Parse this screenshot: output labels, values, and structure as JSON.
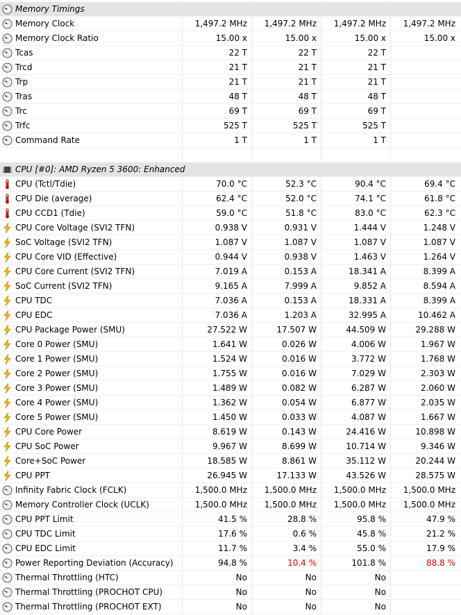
{
  "sections": [
    {
      "title": "Memory Timings",
      "rows": [
        {
          "label": "Memory Clock",
          "values": [
            "1,497.2 MHz",
            "1,497.2 MHz",
            "1,497.2 MHz",
            "1,497.2 MHz"
          ]
        },
        {
          "label": "Memory Clock Ratio",
          "values": [
            "15.00 x",
            "15.00 x",
            "15.00 x",
            "15.00 x"
          ]
        },
        {
          "label": "Tcas",
          "values": [
            "22 T",
            "22 T",
            "22 T",
            null
          ]
        },
        {
          "label": "Trcd",
          "values": [
            "21 T",
            "21 T",
            "21 T",
            null
          ]
        },
        {
          "label": "Trp",
          "values": [
            "21 T",
            "21 T",
            "21 T",
            null
          ]
        },
        {
          "label": "Tras",
          "values": [
            "48 T",
            "48 T",
            "48 T",
            null
          ]
        },
        {
          "label": "Trc",
          "values": [
            "69 T",
            "69 T",
            "69 T",
            null
          ]
        },
        {
          "label": "Trfc",
          "values": [
            "525 T",
            "525 T",
            "525 T",
            null
          ]
        },
        {
          "label": "Command Rate",
          "values": [
            "1 T",
            "1 T",
            "1 T",
            null
          ]
        }
      ]
    },
    {
      "title": "CPU [#0]: AMD Ryzen 5 3600: Enhanced",
      "rows": [
        {
          "label": "CPU (Tctl/Tdie)",
          "values": [
            "70.0 °C",
            "52.3 °C",
            "90.4 °C",
            "69.4 °C"
          ]
        },
        {
          "label": "CPU Die (average)",
          "values": [
            "62.4 °C",
            "52.0 °C",
            "74.1 °C",
            "61.8 °C"
          ]
        },
        {
          "label": "CPU CCD1 (Tdie)",
          "values": [
            "59.0 °C",
            "51.8 °C",
            "83.0 °C",
            "62.3 °C"
          ]
        },
        {
          "label": "CPU Core Voltage (SVI2 TFN)",
          "values": [
            "0.938 V",
            "0.931 V",
            "1.444 V",
            "1.248 V"
          ]
        },
        {
          "label": "SoC Voltage (SVI2 TFN)",
          "values": [
            "1.087 V",
            "1.087 V",
            "1.087 V",
            "1.087 V"
          ]
        },
        {
          "label": "CPU Core VID (Effective)",
          "values": [
            "0.944 V",
            "0.938 V",
            "1.463 V",
            "1.264 V"
          ]
        },
        {
          "label": "CPU Core Current (SVI2 TFN)",
          "values": [
            "7.019 A",
            "0.153 A",
            "18.341 A",
            "8.399 A"
          ]
        },
        {
          "label": "SoC Current (SVI2 TFN)",
          "values": [
            "9.165 A",
            "7.999 A",
            "9.852 A",
            "8.594 A"
          ]
        },
        {
          "label": "CPU TDC",
          "values": [
            "7.036 A",
            "0.153 A",
            "18.331 A",
            "8.399 A"
          ]
        },
        {
          "label": "CPU EDC",
          "values": [
            "7.036 A",
            "1.203 A",
            "32.995 A",
            "10.462 A"
          ]
        },
        {
          "label": "CPU Package Power (SMU)",
          "values": [
            "27.522 W",
            "17.507 W",
            "44.509 W",
            "29.288 W"
          ]
        },
        {
          "label": "Core 0 Power (SMU)",
          "values": [
            "1.641 W",
            "0.026 W",
            "4.006 W",
            "1.967 W"
          ]
        },
        {
          "label": "Core 1 Power (SMU)",
          "values": [
            "1.524 W",
            "0.016 W",
            "3.772 W",
            "1.768 W"
          ]
        },
        {
          "label": "Core 2 Power (SMU)",
          "values": [
            "1.755 W",
            "0.016 W",
            "7.029 W",
            "2.303 W"
          ]
        },
        {
          "label": "Core 3 Power (SMU)",
          "values": [
            "1.489 W",
            "0.082 W",
            "6.287 W",
            "2.060 W"
          ]
        },
        {
          "label": "Core 4 Power (SMU)",
          "values": [
            "1.362 W",
            "0.054 W",
            "6.877 W",
            "2.035 W"
          ]
        },
        {
          "label": "Core 5 Power (SMU)",
          "values": [
            "1.450 W",
            "0.033 W",
            "4.087 W",
            "1.667 W"
          ]
        },
        {
          "label": "CPU Core Power",
          "values": [
            "8.619 W",
            "0.143 W",
            "24.416 W",
            "10.898 W"
          ]
        },
        {
          "label": "CPU SoC Power",
          "values": [
            "9.967 W",
            "8.699 W",
            "10.714 W",
            "9.346 W"
          ]
        },
        {
          "label": "Core+SoC Power",
          "values": [
            "18.585 W",
            "8.861 W",
            "35.112 W",
            "20.244 W"
          ]
        },
        {
          "label": "CPU PPT",
          "values": [
            "26.945 W",
            "17.133 W",
            "43.526 W",
            "28.575 W"
          ]
        },
        {
          "label": "Infinity Fabric Clock (FCLK)",
          "values": [
            "1,500.0 MHz",
            "1,500.0 MHz",
            "1,500.0 MHz",
            "1,500.0 MHz"
          ]
        },
        {
          "label": "Memory Controller Clock (UCLK)",
          "values": [
            "1,500.0 MHz",
            "1,500.0 MHz",
            "1,500.0 MHz",
            "1,500.0 MHz"
          ]
        },
        {
          "label": "CPU PPT Limit",
          "values": [
            "41.5 %",
            "28.8 %",
            "95.8 %",
            "47.9 %"
          ]
        },
        {
          "label": "CPU TDC Limit",
          "values": [
            "17.6 %",
            "0.6 %",
            "45.8 %",
            "21.2 %"
          ]
        },
        {
          "label": "CPU EDC Limit",
          "values": [
            "11.7 %",
            "3.4 %",
            "55.0 %",
            "17.9 %"
          ]
        },
        {
          "label": "Power Reporting Deviation (Accuracy)",
          "values": [
            "94.8 %",
            "10.4 %",
            "101.8 %",
            "88.8 %"
          ]
        },
        {
          "label": "Thermal Throttling (HTC)",
          "values": [
            "No",
            "No",
            "No",
            null
          ]
        },
        {
          "label": "Thermal Throttling (PROCHOT CPU)",
          "values": [
            "No",
            "No",
            "No",
            null
          ]
        },
        {
          "label": "Thermal Throttling (PROCHOT EXT)",
          "values": [
            "No",
            "No",
            "No",
            null
          ]
        }
      ]
    }
  ]
}
